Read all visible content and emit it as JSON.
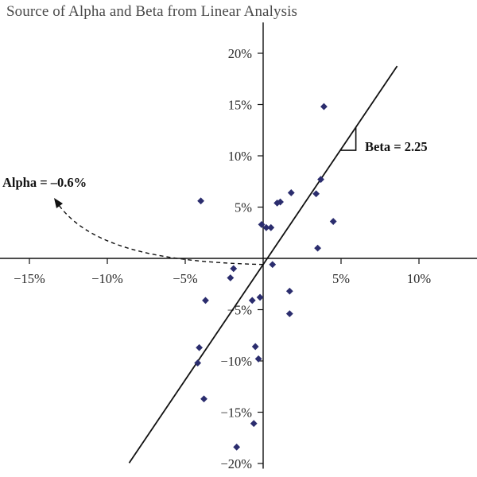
{
  "chart_data": {
    "type": "scatter",
    "title": "Source of Alpha and Beta from Linear Analysis",
    "xlabel": "",
    "ylabel": "",
    "xlim": [
      -17,
      14
    ],
    "ylim": [
      -20.5,
      23
    ],
    "x_ticks": [
      {
        "value": -15,
        "label": "−15%"
      },
      {
        "value": -10,
        "label": "−10%"
      },
      {
        "value": -5,
        "label": "−5%"
      },
      {
        "value": 5,
        "label": "5%"
      },
      {
        "value": 10,
        "label": "10%"
      }
    ],
    "y_ticks": [
      {
        "value": 20,
        "label": "20%"
      },
      {
        "value": 15,
        "label": "15%"
      },
      {
        "value": 10,
        "label": "10%"
      },
      {
        "value": 5,
        "label": "5%"
      },
      {
        "value": -5,
        "label": "−5%"
      },
      {
        "value": -10,
        "label": "−10%"
      },
      {
        "value": -15,
        "label": "−15%"
      },
      {
        "value": -20,
        "label": "−20%"
      }
    ],
    "grid": false,
    "marker_color": "#2b2d6e",
    "series": [
      {
        "values": [
          [
            3.9,
            14.8
          ],
          [
            -4.0,
            5.6
          ],
          [
            3.7,
            7.7
          ],
          [
            3.4,
            6.3
          ],
          [
            1.8,
            6.4
          ],
          [
            1.1,
            5.5
          ],
          [
            0.9,
            5.4
          ],
          [
            4.5,
            3.6
          ],
          [
            3.5,
            1.0
          ],
          [
            -0.1,
            3.3
          ],
          [
            0.2,
            3.0
          ],
          [
            0.5,
            3.0
          ],
          [
            0.6,
            -0.6
          ],
          [
            -1.9,
            -1.0
          ],
          [
            -2.1,
            -1.9
          ],
          [
            -3.7,
            -4.1
          ],
          [
            -0.7,
            -4.1
          ],
          [
            -0.2,
            -3.8
          ],
          [
            1.7,
            -3.2
          ],
          [
            1.7,
            -5.4
          ],
          [
            -4.1,
            -8.7
          ],
          [
            -0.5,
            -8.6
          ],
          [
            -0.3,
            -9.8
          ],
          [
            -4.2,
            -10.2
          ],
          [
            -3.8,
            -13.7
          ],
          [
            -0.6,
            -16.1
          ],
          [
            -1.7,
            -18.4
          ]
        ]
      }
    ],
    "regression": {
      "alpha": -0.6,
      "beta": 2.25,
      "x_range": [
        -8.6,
        8.6
      ]
    },
    "annotations": {
      "beta_label": "Beta = 2.25",
      "alpha_label": "Alpha = –0.6%"
    }
  }
}
